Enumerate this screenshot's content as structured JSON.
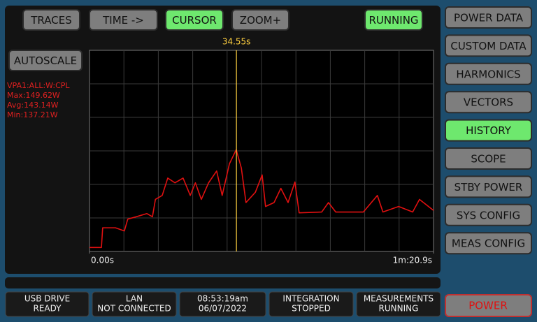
{
  "top_buttons": [
    {
      "label": "TRACES"
    },
    {
      "label": "TIME ->"
    },
    {
      "label": "CURSOR",
      "active": true
    },
    {
      "label": "ZOOM+"
    }
  ],
  "run_status": {
    "label": "RUNNING",
    "active": true
  },
  "autoscale": "AUTOSCALE",
  "trace_info": [
    "VPA1:ALL:W:CPL",
    "Max:149.62W",
    "Avg:143.14W",
    "Min:137.21W"
  ],
  "chart_data": {
    "type": "line",
    "x": [
      0,
      2.8,
      3.1,
      6.1,
      8.2,
      9.0,
      11.0,
      13.5,
      14.8,
      15.5,
      17.1,
      18.4,
      20.1,
      22.0,
      23.7,
      24.9,
      26.3,
      28.0,
      29.9,
      31.2,
      32.9,
      34.5,
      35.7,
      36.8,
      39.0,
      40.6,
      41.4,
      43.4,
      45.0,
      46.7,
      48.3,
      49.3,
      54.6,
      56.2,
      57.9,
      64.4,
      67.7,
      69.0,
      72.7,
      76.0,
      77.6,
      80.9
    ],
    "series": [
      {
        "color": "#e01010",
        "values": [
          137.2,
          137.2,
          139.7,
          139.7,
          139.3,
          140.8,
          141.1,
          141.5,
          141.1,
          143.3,
          143.8,
          146.0,
          145.4,
          146.0,
          143.8,
          145.4,
          143.3,
          145.4,
          146.9,
          143.8,
          147.8,
          149.6,
          147.3,
          142.9,
          144.2,
          146.4,
          142.4,
          142.9,
          144.7,
          142.9,
          145.5,
          141.6,
          141.7,
          142.9,
          141.7,
          141.7,
          143.8,
          141.7,
          142.4,
          141.7,
          143.3,
          141.9
        ]
      }
    ],
    "xlim": [
      0,
      80.9
    ],
    "xticks": [
      {
        "value": 0,
        "label": "0.00s"
      },
      {
        "value": 80.9,
        "label": "1m:20.9s"
      }
    ],
    "ylim": [
      136.7,
      162.2
    ],
    "cursor": {
      "value": 34.55,
      "label": "34.55s"
    },
    "cursor_color": "#ffd040",
    "grid": true
  },
  "status_bar": [
    [
      "USB DRIVE",
      "READY"
    ],
    [
      "LAN",
      "NOT CONNECTED"
    ],
    [
      "08:53:19am",
      "06/07/2022"
    ],
    [
      "INTEGRATION",
      "STOPPED"
    ],
    [
      "MEASUREMENTS",
      "RUNNING"
    ]
  ],
  "menu": [
    {
      "label": "POWER DATA"
    },
    {
      "label": "CUSTOM DATA"
    },
    {
      "label": "HARMONICS"
    },
    {
      "label": "VECTORS"
    },
    {
      "label": "HISTORY",
      "active": true
    },
    {
      "label": "SCOPE"
    },
    {
      "label": "STBY POWER"
    },
    {
      "label": "SYS CONFIG"
    },
    {
      "label": "MEAS CONFIG"
    }
  ],
  "power_button": "POWER"
}
